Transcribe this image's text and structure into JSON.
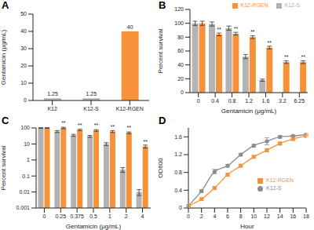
{
  "chart_data": [
    {
      "type": "bar",
      "title": "A",
      "categories": [
        "K12",
        "K12-S",
        "K12-RGEN"
      ],
      "values": [
        1.25,
        1.25,
        40
      ],
      "colors": [
        "#b3b3b3",
        "#b3b3b3",
        "#f7923a"
      ],
      "y_label": "Gentamicin (μg/mL)",
      "ylim": [
        0,
        50
      ],
      "yticks": [
        0,
        10,
        20,
        30,
        40,
        50
      ],
      "data_labels": true
    },
    {
      "type": "bar",
      "title": "B",
      "categories": [
        "0",
        "0.4",
        "0.8",
        "1.2",
        "1.6",
        "3.2",
        "6.25"
      ],
      "series": [
        {
          "name": "K12-S",
          "color": "#b3b3b3",
          "values": [
            100,
            99,
            93,
            52,
            18,
            0,
            0
          ],
          "errors": [
            3,
            3,
            3,
            3,
            1.5,
            0,
            0
          ]
        },
        {
          "name": "K12-RGEN",
          "color": "#f7923a",
          "values": [
            100,
            84,
            85,
            80,
            65,
            44,
            44
          ],
          "errors": [
            3,
            2,
            2,
            2,
            2,
            2,
            2
          ],
          "annotations": [
            null,
            "**",
            "**",
            "**",
            "**",
            "**",
            "**"
          ]
        }
      ],
      "x_label": "Gentamicin (μg/mL)",
      "y_label": "Percent survival",
      "ylim": [
        0,
        120
      ],
      "yticks": [
        0,
        20,
        40,
        60,
        80,
        100,
        120
      ],
      "legend": "upper right"
    },
    {
      "type": "bar",
      "title": "C",
      "categories": [
        "0",
        "0.25",
        "0.375",
        "0.5",
        "1",
        "2",
        "4"
      ],
      "series": [
        {
          "color": "#b3b3b3",
          "values": [
            100,
            60,
            35,
            30,
            10,
            0.25,
            0.01
          ],
          "errors": [
            5,
            8,
            5,
            4,
            2,
            0.08,
            0.004
          ]
        },
        {
          "color": "#f7923a",
          "values": [
            100,
            100,
            75,
            70,
            60,
            50,
            7
          ],
          "errors": [
            5,
            10,
            8,
            8,
            8,
            6,
            1.5
          ],
          "annotations": [
            null,
            "**",
            "**",
            "**",
            "**",
            "**",
            "**"
          ]
        }
      ],
      "x_label": "Gentamicin (μg/mL)",
      "y_label": "Percent survival",
      "log": "y",
      "ylim": [
        0.001,
        100
      ],
      "yticks": [
        0.001,
        0.01,
        0.1,
        1,
        10,
        100
      ]
    },
    {
      "type": "line",
      "title": "D",
      "x": [
        0,
        2,
        4,
        6,
        8,
        10,
        12,
        14,
        16,
        18
      ],
      "series": [
        {
          "name": "K12-S",
          "color": "#8c8c8c",
          "marker": "circle",
          "values": [
            0.05,
            0.38,
            0.82,
            0.95,
            1.2,
            1.4,
            1.5,
            1.6,
            1.62,
            1.65
          ],
          "errors": [
            0.02,
            0.03,
            0.05,
            0.03,
            0.03,
            0.03,
            0.08,
            0.03,
            0.02,
            0.02
          ]
        },
        {
          "name": "K12-RGEN",
          "color": "#f7923a",
          "marker": "square",
          "values": [
            0.05,
            0.2,
            0.45,
            0.75,
            0.95,
            1.15,
            1.3,
            1.45,
            1.55,
            1.62
          ],
          "errors": [
            0.02,
            0.02,
            0.03,
            0.03,
            0.03,
            0.03,
            0.03,
            0.03,
            0.02,
            0.02
          ]
        }
      ],
      "x_label": "Hour",
      "y_label": "OD600",
      "xlim": [
        0,
        18
      ],
      "xticks": [
        0,
        2,
        4,
        6,
        8,
        10,
        12,
        14,
        16,
        18
      ],
      "ylim": [
        0,
        1.8
      ],
      "yticks": [
        0,
        0.4,
        0.8,
        1.2,
        1.6
      ],
      "legend": "lower right"
    }
  ]
}
